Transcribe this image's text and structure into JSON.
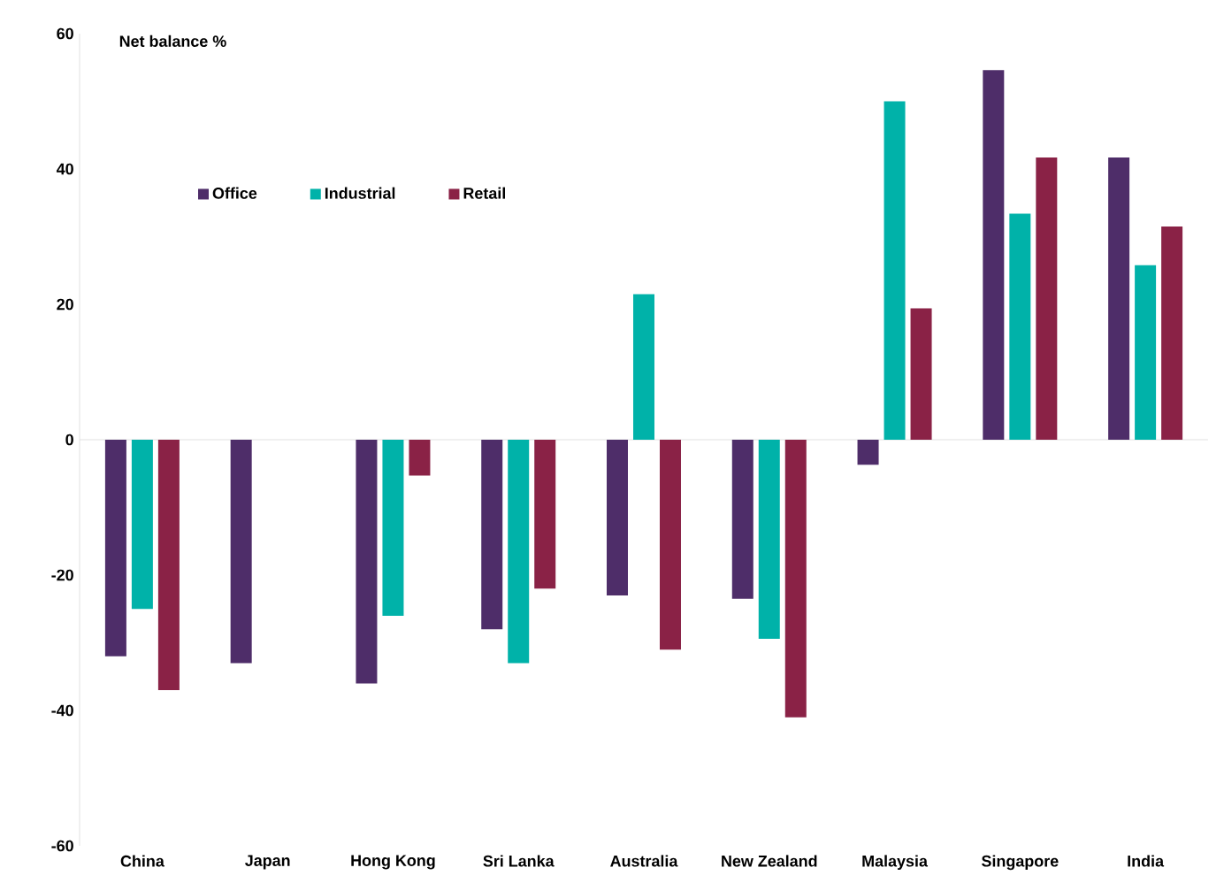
{
  "chart_data": {
    "type": "bar",
    "ylabel": "Net balance %",
    "categories": [
      "China",
      "Japan",
      "Hong Kong",
      "Sri Lanka",
      "Australia",
      "New Zealand",
      "Malaysia",
      "Singapore",
      "India"
    ],
    "series": [
      {
        "name": "Office",
        "color": "#4e2d69",
        "values": [
          -32,
          -33,
          -36,
          -28,
          -23,
          -23.5,
          -3.7,
          54.6,
          41.7
        ]
      },
      {
        "name": "Industrial",
        "color": "#00b2a9",
        "values": [
          -25,
          null,
          -26,
          -33,
          21.5,
          -29.4,
          50,
          33.4,
          25.8
        ]
      },
      {
        "name": "Retail",
        "color": "#8a2246",
        "values": [
          -37,
          null,
          -5.3,
          -22,
          -31,
          -41,
          19.4,
          41.7,
          31.5
        ]
      }
    ],
    "ylim": [
      -60,
      60
    ],
    "yticks": [
      -60,
      -40,
      -20,
      0,
      20,
      40,
      60
    ],
    "legend": "top left"
  }
}
